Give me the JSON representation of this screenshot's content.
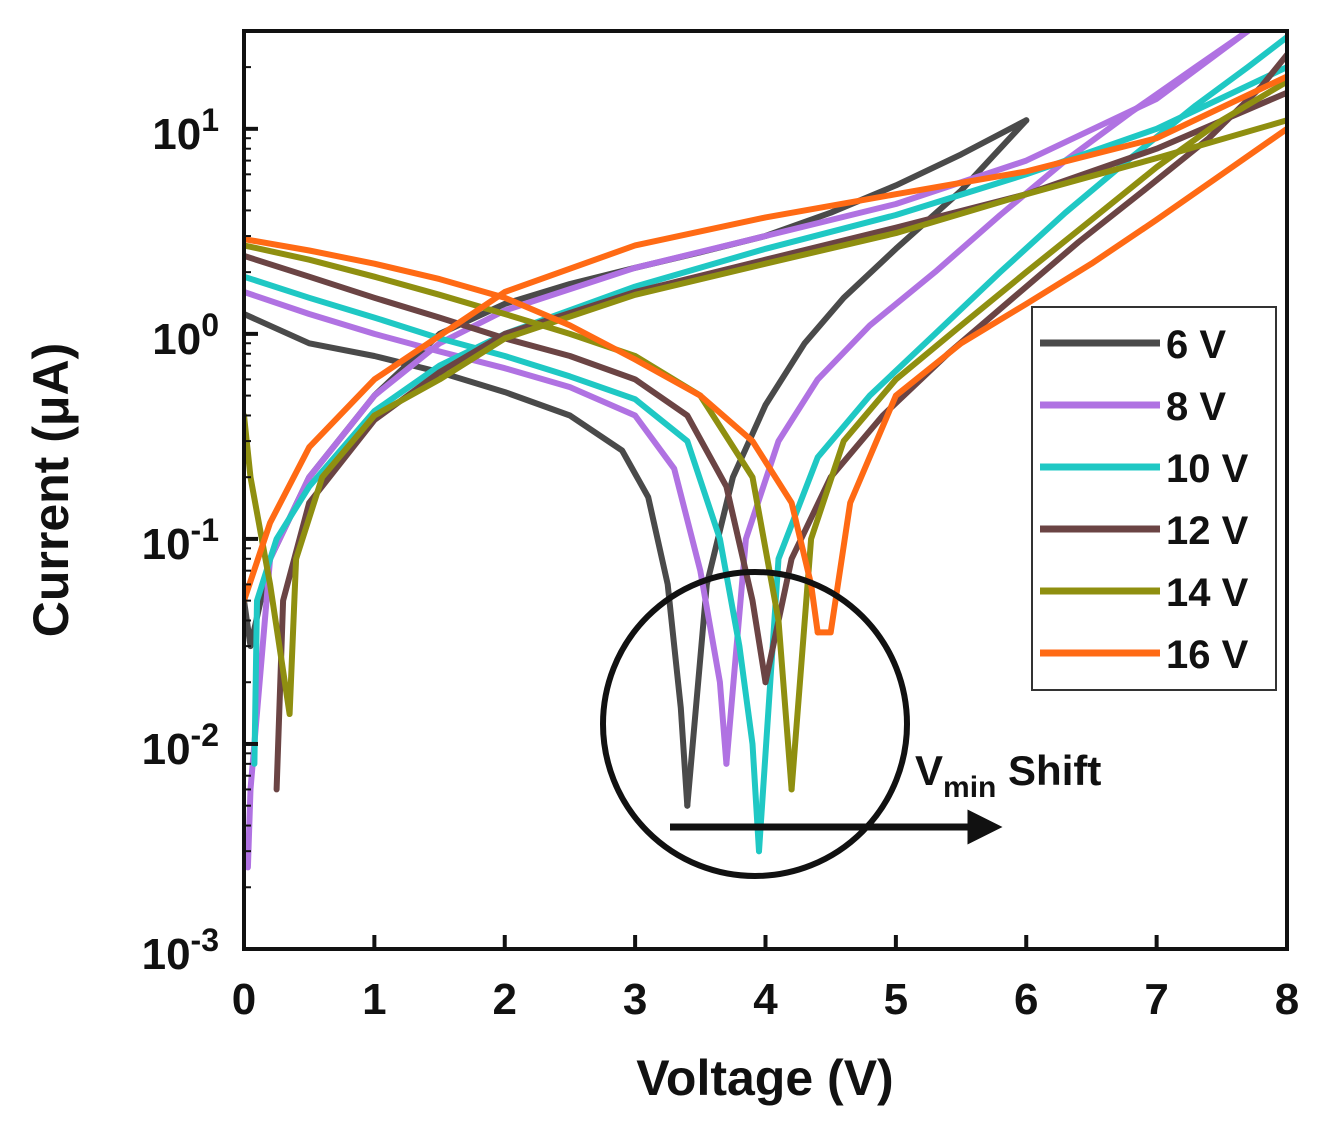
{
  "chart_data": {
    "type": "line",
    "title": "",
    "xlabel": "Voltage (V)",
    "ylabel": "Current (μA)",
    "y_scale": "log",
    "xlim": [
      0,
      8
    ],
    "ylim": [
      0.001,
      30
    ],
    "x_ticks": [
      "0",
      "1",
      "2",
      "3",
      "4",
      "5",
      "6",
      "7",
      "8"
    ],
    "y_ticks": [
      {
        "value": 0.001,
        "base": "10",
        "exp": "-3"
      },
      {
        "value": 0.01,
        "base": "10",
        "exp": "-2"
      },
      {
        "value": 0.1,
        "base": "10",
        "exp": "-1"
      },
      {
        "value": 1,
        "base": "10",
        "exp": "0"
      },
      {
        "value": 10,
        "base": "10",
        "exp": "1"
      }
    ],
    "grid": false,
    "legend": {
      "position": "right"
    },
    "annotation": {
      "main": "V",
      "sub": "min",
      "rest": " Shift"
    },
    "series": [
      {
        "name": "6 V",
        "color": "#4a4a4a",
        "sweeps": [
          {
            "x": [
              0,
              0.5,
              1,
              1.5,
              2,
              2.5,
              2.9,
              3.1,
              3.25,
              3.35,
              3.4
            ],
            "y": [
              1.25,
              0.9,
              0.78,
              0.65,
              0.52,
              0.4,
              0.27,
              0.16,
              0.06,
              0.015,
              0.005
            ]
          },
          {
            "x": [
              3.4,
              3.55,
              3.75,
              4.0,
              4.3,
              4.6,
              5.0,
              5.5,
              6.0
            ],
            "y": [
              0.005,
              0.06,
              0.2,
              0.45,
              0.9,
              1.5,
              2.6,
              5.0,
              11
            ]
          },
          {
            "x": [
              6.0,
              5.5,
              5.0,
              4.5,
              4.0,
              3.5,
              3.0,
              2.5,
              2.0,
              1.5,
              1.0,
              0.5,
              0.2,
              0.05,
              0.0
            ],
            "y": [
              11,
              7.5,
              5.3,
              3.9,
              3.0,
              2.5,
              2.1,
              1.75,
              1.4,
              1.0,
              0.5,
              0.2,
              0.08,
              0.03,
              0.05
            ]
          }
        ]
      },
      {
        "name": "8 V",
        "color": "#b072e2",
        "sweeps": [
          {
            "x": [
              0,
              0.5,
              1,
              1.5,
              2,
              2.5,
              3.0,
              3.3,
              3.5,
              3.65,
              3.7
            ],
            "y": [
              1.6,
              1.25,
              1.0,
              0.82,
              0.68,
              0.55,
              0.4,
              0.22,
              0.07,
              0.02,
              0.008
            ]
          },
          {
            "x": [
              3.7,
              3.85,
              4.1,
              4.4,
              4.8,
              5.3,
              5.8,
              6.3,
              6.8,
              7.3,
              7.7
            ],
            "y": [
              0.008,
              0.1,
              0.3,
              0.6,
              1.1,
              2.0,
              3.8,
              7.0,
              12,
              20,
              30
            ]
          },
          {
            "x": [
              7.7,
              7.0,
              6.0,
              5.0,
              4.0,
              3.0,
              2.0,
              1.5,
              1.0,
              0.5,
              0.2,
              0.05,
              0.03
            ],
            "y": [
              30,
              14,
              7.0,
              4.3,
              3.0,
              2.1,
              1.3,
              0.9,
              0.5,
              0.2,
              0.08,
              0.006,
              0.0025
            ]
          }
        ]
      },
      {
        "name": "10 V",
        "color": "#1fc8c4",
        "sweeps": [
          {
            "x": [
              0,
              0.5,
              1,
              1.5,
              2,
              2.5,
              3.0,
              3.4,
              3.65,
              3.8,
              3.9,
              3.95
            ],
            "y": [
              1.9,
              1.5,
              1.2,
              0.95,
              0.78,
              0.62,
              0.48,
              0.3,
              0.1,
              0.03,
              0.01,
              0.003
            ]
          },
          {
            "x": [
              3.95,
              4.1,
              4.4,
              4.8,
              5.3,
              5.8,
              6.3,
              6.8,
              7.3,
              7.7,
              8.0
            ],
            "y": [
              0.003,
              0.08,
              0.25,
              0.5,
              1.0,
              2.0,
              3.9,
              7.2,
              13,
              20,
              28
            ]
          },
          {
            "x": [
              8.0,
              7.0,
              6.0,
              5.0,
              4.0,
              3.0,
              2.0,
              1.5,
              1.0,
              0.5,
              0.25,
              0.1,
              0.08
            ],
            "y": [
              20,
              10,
              6.0,
              3.8,
              2.6,
              1.7,
              1.0,
              0.7,
              0.42,
              0.18,
              0.1,
              0.05,
              0.008
            ]
          }
        ]
      },
      {
        "name": "12 V",
        "color": "#6b4444",
        "sweeps": [
          {
            "x": [
              0,
              0.5,
              1,
              1.5,
              2,
              2.5,
              3.0,
              3.4,
              3.7,
              3.9,
              4.0
            ],
            "y": [
              2.4,
              1.9,
              1.5,
              1.2,
              0.95,
              0.78,
              0.6,
              0.4,
              0.18,
              0.05,
              0.02
            ]
          },
          {
            "x": [
              4.0,
              4.2,
              4.5,
              4.9,
              5.4,
              5.9,
              6.4,
              6.9,
              7.4,
              7.8,
              8.0
            ],
            "y": [
              0.02,
              0.08,
              0.2,
              0.4,
              0.8,
              1.5,
              2.8,
              5.0,
              9.0,
              16,
              23
            ]
          },
          {
            "x": [
              8.0,
              7.0,
              6.0,
              5.0,
              4.0,
              3.0,
              2.0,
              1.5,
              1.0,
              0.5,
              0.3,
              0.25
            ],
            "y": [
              15,
              8.0,
              4.8,
              3.3,
              2.3,
              1.6,
              1.0,
              0.65,
              0.38,
              0.15,
              0.05,
              0.006
            ]
          }
        ]
      },
      {
        "name": "14 V",
        "color": "#8f8f10",
        "sweeps": [
          {
            "x": [
              0,
              0.5,
              1,
              1.5,
              2,
              2.5,
              3.0,
              3.5,
              3.9,
              4.1,
              4.2
            ],
            "y": [
              2.7,
              2.3,
              1.9,
              1.55,
              1.25,
              1.0,
              0.78,
              0.5,
              0.2,
              0.04,
              0.006
            ]
          },
          {
            "x": [
              4.2,
              4.35,
              4.6,
              5.0,
              5.5,
              6.0,
              6.5,
              7.0,
              7.5,
              8.0
            ],
            "y": [
              0.006,
              0.1,
              0.3,
              0.6,
              1.1,
              2.0,
              3.6,
              6.5,
              11,
              17
            ]
          },
          {
            "x": [
              8.0,
              7.0,
              6.0,
              5.0,
              4.0,
              3.0,
              2.0,
              1.5,
              1.0,
              0.6,
              0.4,
              0.35,
              0.2,
              0.05,
              0.0
            ],
            "y": [
              11,
              7.2,
              4.8,
              3.1,
              2.2,
              1.55,
              0.95,
              0.6,
              0.4,
              0.2,
              0.08,
              0.014,
              0.06,
              0.2,
              0.4
            ]
          }
        ]
      },
      {
        "name": "16 V",
        "color": "#ff6a14",
        "sweeps": [
          {
            "x": [
              0,
              0.5,
              1,
              1.5,
              2,
              2.5,
              3.0,
              3.5,
              3.9,
              4.2,
              4.35,
              4.4
            ],
            "y": [
              2.9,
              2.55,
              2.2,
              1.85,
              1.5,
              1.1,
              0.75,
              0.5,
              0.3,
              0.15,
              0.06,
              0.035
            ]
          },
          {
            "x": [
              4.4,
              4.5,
              4.65,
              5.0,
              5.5,
              6.0,
              6.5,
              7.0,
              7.5,
              8.0
            ],
            "y": [
              0.035,
              0.035,
              0.15,
              0.5,
              0.9,
              1.4,
              2.2,
              3.6,
              6.0,
              10
            ]
          },
          {
            "x": [
              8.0,
              7.0,
              6.0,
              5.0,
              4.0,
              3.0,
              2.0,
              1.0,
              0.5,
              0.2,
              0.0
            ],
            "y": [
              18,
              9.0,
              6.2,
              4.8,
              3.7,
              2.7,
              1.6,
              0.6,
              0.28,
              0.12,
              0.05
            ]
          }
        ]
      }
    ]
  }
}
